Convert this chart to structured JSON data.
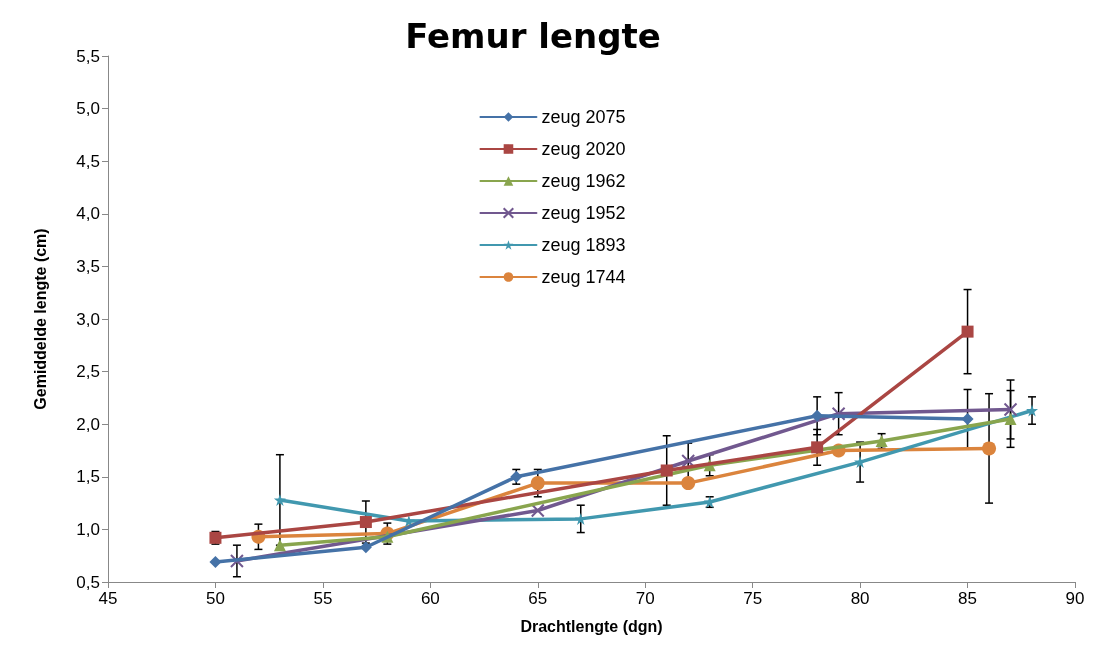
{
  "chart_data": {
    "type": "line",
    "title": "Femur lengte",
    "xlabel": "Drachtlengte (dgn)",
    "ylabel": "Gemiddelde lengte (cm)",
    "xlim": [
      45,
      90
    ],
    "xticks": [
      45,
      50,
      55,
      60,
      65,
      70,
      75,
      80,
      85,
      90
    ],
    "ylim": [
      0.5,
      5.5
    ],
    "yticks": [
      {
        "value": 0.5,
        "label": "0,5"
      },
      {
        "value": 1,
        "label": "1,0"
      },
      {
        "value": 1.5,
        "label": "1,5"
      },
      {
        "value": 2,
        "label": "2,0"
      },
      {
        "value": 2.5,
        "label": "2,5"
      },
      {
        "value": 3,
        "label": "3,0"
      },
      {
        "value": 3.5,
        "label": "3,5"
      },
      {
        "value": 4,
        "label": "4,0"
      },
      {
        "value": 4.5,
        "label": "4,5"
      },
      {
        "value": 5,
        "label": "5,0"
      },
      {
        "value": 5.5,
        "label": "5,5"
      }
    ],
    "grid": false,
    "legend": "top",
    "line_style": "solid",
    "series": [
      {
        "name": "zeug 2075",
        "color": "#4572a7",
        "marker": "diamond",
        "x": [
          50,
          57,
          64,
          78,
          85
        ],
        "values": [
          0.69,
          0.83,
          1.5,
          2.08,
          2.05
        ],
        "errors": [
          null,
          null,
          0.07,
          0.18,
          0.28
        ]
      },
      {
        "name": "zeug 2020",
        "color": "#aa4643",
        "marker": "square",
        "x": [
          50,
          57,
          71,
          78,
          85
        ],
        "values": [
          0.92,
          1.07,
          1.56,
          1.78,
          2.88
        ],
        "errors": [
          0.06,
          0.2,
          0.33,
          0.17,
          0.4
        ]
      },
      {
        "name": "zeug 1962",
        "color": "#89a54e",
        "marker": "triangle",
        "x": [
          53,
          58,
          73,
          81,
          87
        ],
        "values": [
          0.85,
          0.93,
          1.61,
          1.84,
          2.05
        ],
        "errors": [
          null,
          null,
          0.1,
          0.07,
          0.27
        ]
      },
      {
        "name": "zeug 1952",
        "color": "#71588f",
        "marker": "cross",
        "x": [
          51,
          65,
          72,
          79,
          87
        ],
        "values": [
          0.7,
          1.18,
          1.65,
          2.1,
          2.14
        ],
        "errors": [
          0.15,
          null,
          0.17,
          0.2,
          0.28
        ]
      },
      {
        "name": "zeug 1893",
        "color": "#4198af",
        "marker": "star",
        "x": [
          53,
          59,
          67,
          73,
          80,
          88
        ],
        "values": [
          1.28,
          1.08,
          1.1,
          1.26,
          1.64,
          2.13
        ],
        "errors": [
          0.43,
          null,
          0.13,
          0.05,
          0.19,
          0.13
        ]
      },
      {
        "name": "zeug 1744",
        "color": "#db843d",
        "marker": "circle",
        "x": [
          52,
          58,
          65,
          72,
          79,
          86
        ],
        "values": [
          0.93,
          0.96,
          1.44,
          1.44,
          1.75,
          1.77
        ],
        "errors": [
          0.12,
          0.1,
          0.13,
          null,
          null,
          0.52
        ]
      }
    ]
  }
}
